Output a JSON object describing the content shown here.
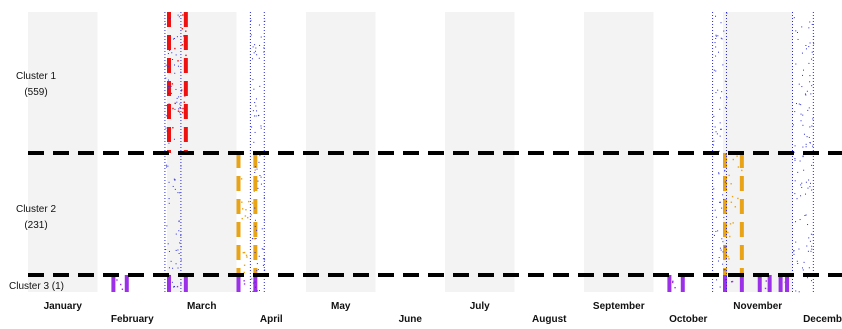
{
  "chart_data": {
    "type": "timeline",
    "x_axis": {
      "unit": "month",
      "tick_labels": [
        "January",
        "February",
        "March",
        "April",
        "May",
        "June",
        "July",
        "August",
        "September",
        "October",
        "November",
        "December"
      ]
    },
    "shaded_months": [
      "January",
      "March",
      "May",
      "July",
      "September",
      "November"
    ],
    "clusters": [
      {
        "label": "Cluster 1",
        "count": "(559)"
      },
      {
        "label": "Cluster 2",
        "count": "(231)"
      },
      {
        "label": "Cluster 3 (1)",
        "count": ""
      }
    ],
    "colors": {
      "cluster_1": "#ee1111",
      "cluster_2": "#e8a317",
      "cluster_3": "#9b30e8",
      "dotted_band": "#2a2ad8",
      "separator": "#000000",
      "shade": "#f3f3f3"
    },
    "highlight_bands": [
      {
        "cluster": "Cluster 1",
        "color": "cluster_1",
        "start_month": 3.0,
        "end_month": 3.3
      },
      {
        "cluster": "Cluster 2",
        "color": "cluster_2",
        "start_month": 4.0,
        "end_month": 4.3
      },
      {
        "cluster": "Cluster 2",
        "color": "cluster_2",
        "start_month": 11.0,
        "end_month": 11.3
      },
      {
        "cluster": "Cluster 3 (1)",
        "color": "cluster_3",
        "start_month": 2.2,
        "end_month": 2.45
      },
      {
        "cluster": "Cluster 3 (1)",
        "color": "cluster_3",
        "start_month": 3.0,
        "end_month": 3.3
      },
      {
        "cluster": "Cluster 3 (1)",
        "color": "cluster_3",
        "start_month": 4.0,
        "end_month": 4.3
      },
      {
        "cluster": "Cluster 3 (1)",
        "color": "cluster_3",
        "start_month": 10.2,
        "end_month": 10.45
      },
      {
        "cluster": "Cluster 3 (1)",
        "color": "cluster_3",
        "start_month": 11.0,
        "end_month": 11.3
      },
      {
        "cluster": "Cluster 3 (1)",
        "color": "cluster_3",
        "start_month": 11.5,
        "end_month": 11.7
      },
      {
        "cluster": "Cluster 3 (1)",
        "color": "cluster_3",
        "start_month": 11.8,
        "end_month": 11.95
      }
    ],
    "dotted_bands": [
      {
        "start_month": 2.97,
        "end_month": 3.2
      },
      {
        "start_month": 4.2,
        "end_month": 4.4
      },
      {
        "start_month": 10.85,
        "end_month": 11.05
      },
      {
        "start_month": 12.0,
        "end_month": 12.3
      }
    ]
  }
}
